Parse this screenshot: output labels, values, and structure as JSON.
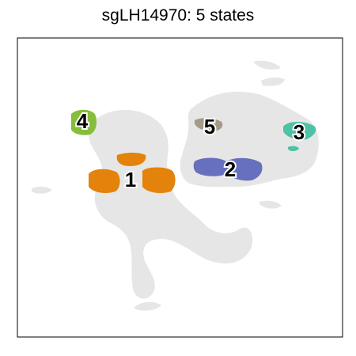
{
  "title": "sgLH14970: 5 states",
  "chart_data": {
    "type": "scatter",
    "title": "sgLH14970: 5 states",
    "xlabel": "",
    "ylabel": "",
    "grid": false,
    "legend": "none",
    "background_color": "#e6e6e6",
    "states": [
      {
        "label": "1",
        "color": "#e3830b"
      },
      {
        "label": "2",
        "color": "#6670bd"
      },
      {
        "label": "3",
        "color": "#4fc1a5"
      },
      {
        "label": "4",
        "color": "#86be3c"
      },
      {
        "label": "5",
        "color": "#a39b86"
      }
    ]
  }
}
